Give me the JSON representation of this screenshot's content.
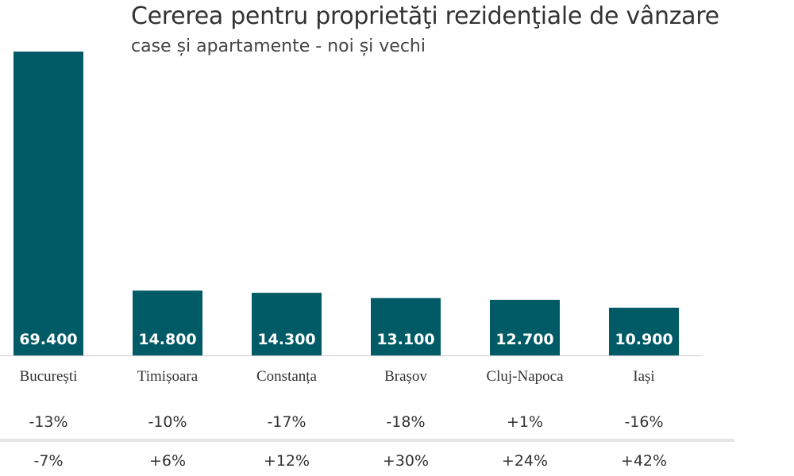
{
  "chart_data": {
    "type": "bar",
    "title": "Cererea pentru proprietăţi rezidenţiale de vânzare",
    "subtitle": "case și apartamente - noi și vechi",
    "categories": [
      "București",
      "Timișoara",
      "Constanța",
      "Brașov",
      "Cluj-Napoca",
      "Iași"
    ],
    "values": [
      69400,
      14800,
      14300,
      13100,
      12700,
      10900
    ],
    "value_labels": [
      "69.400",
      "14.800",
      "14.300",
      "13.100",
      "12.700",
      "10.900"
    ],
    "change_row_1": [
      "-13%",
      "-10%",
      "-17%",
      "-18%",
      "+1%",
      "-16%"
    ],
    "change_row_2": [
      "-7%",
      "+6%",
      "+12%",
      "+30%",
      "+24%",
      "+42%"
    ],
    "ylim": [
      0,
      70000
    ],
    "grid": false,
    "legend": "none"
  },
  "colors": {
    "bar": "#005b66",
    "bar_label": "#ffffff",
    "text": "#333333",
    "axis": "#cccccc",
    "divider": "#e6e6e6"
  }
}
